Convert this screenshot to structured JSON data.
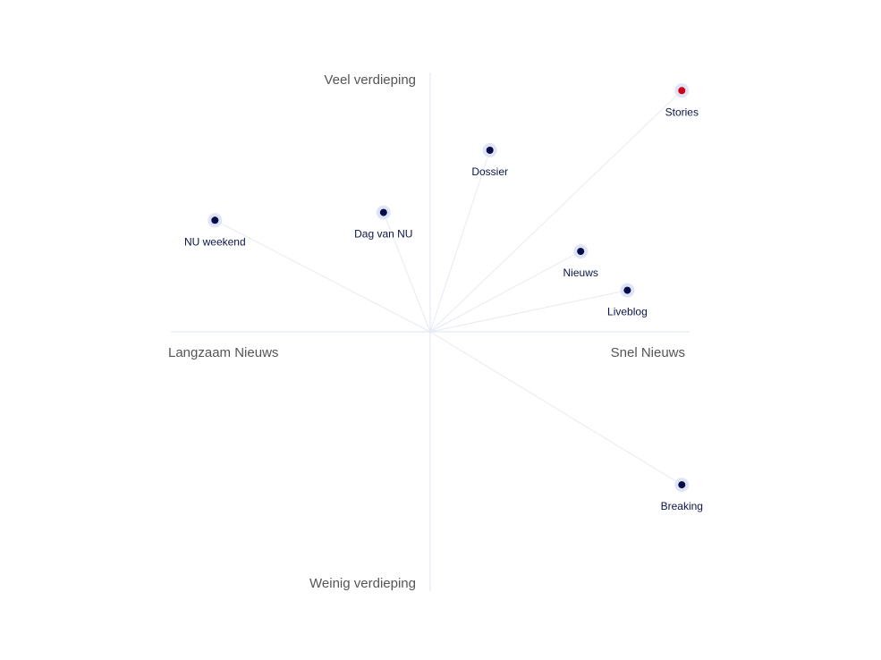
{
  "chart_data": {
    "type": "scatter",
    "xlim": [
      -10,
      10
    ],
    "ylim": [
      -10,
      10
    ],
    "grid": false,
    "axis_labels": {
      "x_negative": "Langzaam Nieuws",
      "x_positive": "Snel Nieuws",
      "y_positive": "Veel verdieping",
      "y_negative": "Weinig verdieping"
    },
    "points": [
      {
        "label": "Stories",
        "x": 9.7,
        "y": 9.3,
        "color": "#d0021b",
        "highlighted": true
      },
      {
        "label": "Dossier",
        "x": 2.3,
        "y": 7.0,
        "color": "#060b4a",
        "highlighted": false
      },
      {
        "label": "NU weekend",
        "x": -8.3,
        "y": 4.3,
        "color": "#060b4a",
        "highlighted": false
      },
      {
        "label": "Dag van NU",
        "x": -1.8,
        "y": 4.6,
        "color": "#060b4a",
        "highlighted": false
      },
      {
        "label": "Nieuws",
        "x": 5.8,
        "y": 3.1,
        "color": "#060b4a",
        "highlighted": false
      },
      {
        "label": "Liveblog",
        "x": 7.6,
        "y": 1.6,
        "color": "#060b4a",
        "highlighted": false
      },
      {
        "label": "Breaking",
        "x": 9.7,
        "y": -5.9,
        "color": "#060b4a",
        "highlighted": false
      }
    ]
  }
}
